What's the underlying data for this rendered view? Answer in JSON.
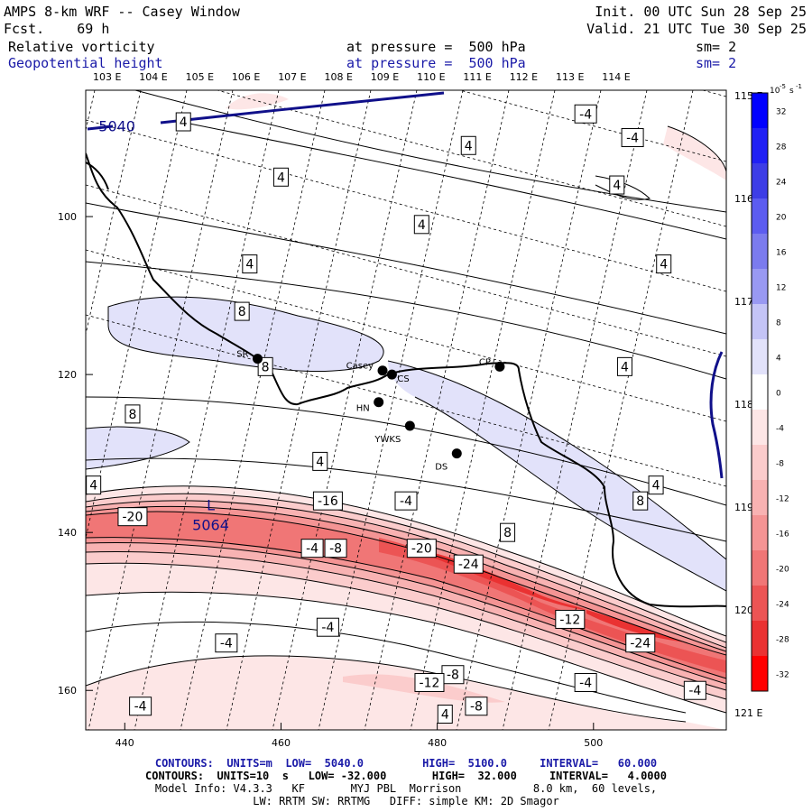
{
  "header": {
    "title": "AMPS 8-km WRF -- Casey Window",
    "fcst_label": "Fcst.",
    "fcst_value": "69 h",
    "init": "Init. 00 UTC Sun 28 Sep 25",
    "valid": "Valid. 21 UTC Tue 30 Sep 25",
    "field1": "Relative vorticity",
    "field1_level": "at pressure =  500 hPa",
    "field1_sm": "sm= 2",
    "field2": "Geopotential height",
    "field2_level": "at pressure =  500 hPa",
    "field2_sm": "sm= 2"
  },
  "chart_data": {
    "type": "contour map",
    "top_lon_labels": [
      "103 E",
      "104 E",
      "105 E",
      "106 E",
      "107 E",
      "108 E",
      "109 E",
      "110 E",
      "111 E",
      "112 E",
      "113 E",
      "114 E"
    ],
    "right_lon_labels": [
      "115 E",
      "116 E",
      "117 E",
      "118 E",
      "119 E",
      "120 E",
      "121 E"
    ],
    "x_ticks": [
      "440",
      "460",
      "480",
      "500"
    ],
    "y_ticks": [
      "100",
      "120",
      "140",
      "160"
    ],
    "xlim": [
      435,
      517
    ],
    "ylim": [
      165,
      84
    ],
    "stations": [
      {
        "name": "Casey",
        "x": 473.0,
        "y": 119.5
      },
      {
        "name": "CS",
        "x": 474.2,
        "y": 120.0
      },
      {
        "name": "CP",
        "x": 488.0,
        "y": 119.0
      },
      {
        "name": "SR",
        "x": 457.0,
        "y": 118.0
      },
      {
        "name": "HN",
        "x": 472.5,
        "y": 123.5
      },
      {
        "name": "YWKS",
        "x": 476.5,
        "y": 126.5
      },
      {
        "name": "DS",
        "x": 482.5,
        "y": 130.0
      }
    ],
    "vorticity_labels": [
      {
        "text": "4",
        "x": 447.5,
        "y": 88
      },
      {
        "text": "4",
        "x": 484,
        "y": 91
      },
      {
        "text": "-4",
        "x": 499,
        "y": 87
      },
      {
        "text": "-4",
        "x": 505,
        "y": 90
      },
      {
        "text": "4",
        "x": 460,
        "y": 95
      },
      {
        "text": "4",
        "x": 503,
        "y": 96
      },
      {
        "text": "4",
        "x": 478,
        "y": 101
      },
      {
        "text": "4",
        "x": 456,
        "y": 106
      },
      {
        "text": "4",
        "x": 509,
        "y": 106
      },
      {
        "text": "8",
        "x": 455,
        "y": 112
      },
      {
        "text": "8",
        "x": 458,
        "y": 119
      },
      {
        "text": "4",
        "x": 504,
        "y": 119
      },
      {
        "text": "8",
        "x": 441,
        "y": 125
      },
      {
        "text": "4",
        "x": 465,
        "y": 131
      },
      {
        "text": "4",
        "x": 436,
        "y": 134
      },
      {
        "text": "4",
        "x": 508,
        "y": 134
      },
      {
        "text": "8",
        "x": 506,
        "y": 136
      },
      {
        "text": "-20",
        "x": 441,
        "y": 138
      },
      {
        "text": "-16",
        "x": 466,
        "y": 136
      },
      {
        "text": "-4",
        "x": 476,
        "y": 136
      },
      {
        "text": "8",
        "x": 489,
        "y": 140
      },
      {
        "text": "-4",
        "x": 464,
        "y": 142
      },
      {
        "text": "-8",
        "x": 467,
        "y": 142
      },
      {
        "text": "-20",
        "x": 478,
        "y": 142
      },
      {
        "text": "-24",
        "x": 484,
        "y": 144
      },
      {
        "text": "-12",
        "x": 497,
        "y": 151
      },
      {
        "text": "-4",
        "x": 466,
        "y": 152
      },
      {
        "text": "-24",
        "x": 506,
        "y": 154
      },
      {
        "text": "-4",
        "x": 453,
        "y": 154
      },
      {
        "text": "-8",
        "x": 482,
        "y": 158
      },
      {
        "text": "-12",
        "x": 479,
        "y": 159
      },
      {
        "text": "-4",
        "x": 499,
        "y": 159
      },
      {
        "text": "-4",
        "x": 513,
        "y": 160
      },
      {
        "text": "-4",
        "x": 442,
        "y": 162
      },
      {
        "text": "-8",
        "x": 485,
        "y": 162
      },
      {
        "text": "4",
        "x": 481,
        "y": 163
      }
    ],
    "height_labels": [
      {
        "text": "5040",
        "x": 439,
        "y": 88.5
      },
      {
        "text": "5064",
        "x": 451,
        "y": 139
      },
      {
        "text": "L",
        "x": 451,
        "y": 136.5
      }
    ],
    "colorbar": {
      "units": "10",
      "units_exp": "-5",
      "units_tail": "s",
      "units_tail_exp": "-1",
      "levels": [
        32,
        28,
        24,
        20,
        16,
        12,
        8,
        4,
        0,
        -4,
        -8,
        -12,
        -16,
        -20,
        -24,
        -28,
        -32
      ],
      "colors": [
        "#0000ff",
        "#2020f4",
        "#3d3de6",
        "#5c5cf0",
        "#7b7bee",
        "#9999f2",
        "#c4c4f6",
        "#e2e2fa",
        "#ffffff",
        "#fde6e6",
        "#fbcccc",
        "#f8b2b2",
        "#f49494",
        "#f07676",
        "#ec5454",
        "#ea3232",
        "#ff0000"
      ]
    }
  },
  "footer": {
    "line1_a": "CONTOURS:  UNITS=m  LOW=  5040.0",
    "line1_b": "HIGH=  5100.0",
    "line1_c": "INTERVAL=   60.000",
    "line2": "CONTOURS:  UNITS=10  s   LOW= -32.000       HIGH=  32.000     INTERVAL=   4.0000",
    "line3": "Model Info: V4.3.3   KF       MYJ PBL  Morrison           8.0 km,  60 levels,",
    "line4": "LW: RRTM SW: RRTMG   DIFF: simple KM: 2D Smagor"
  }
}
